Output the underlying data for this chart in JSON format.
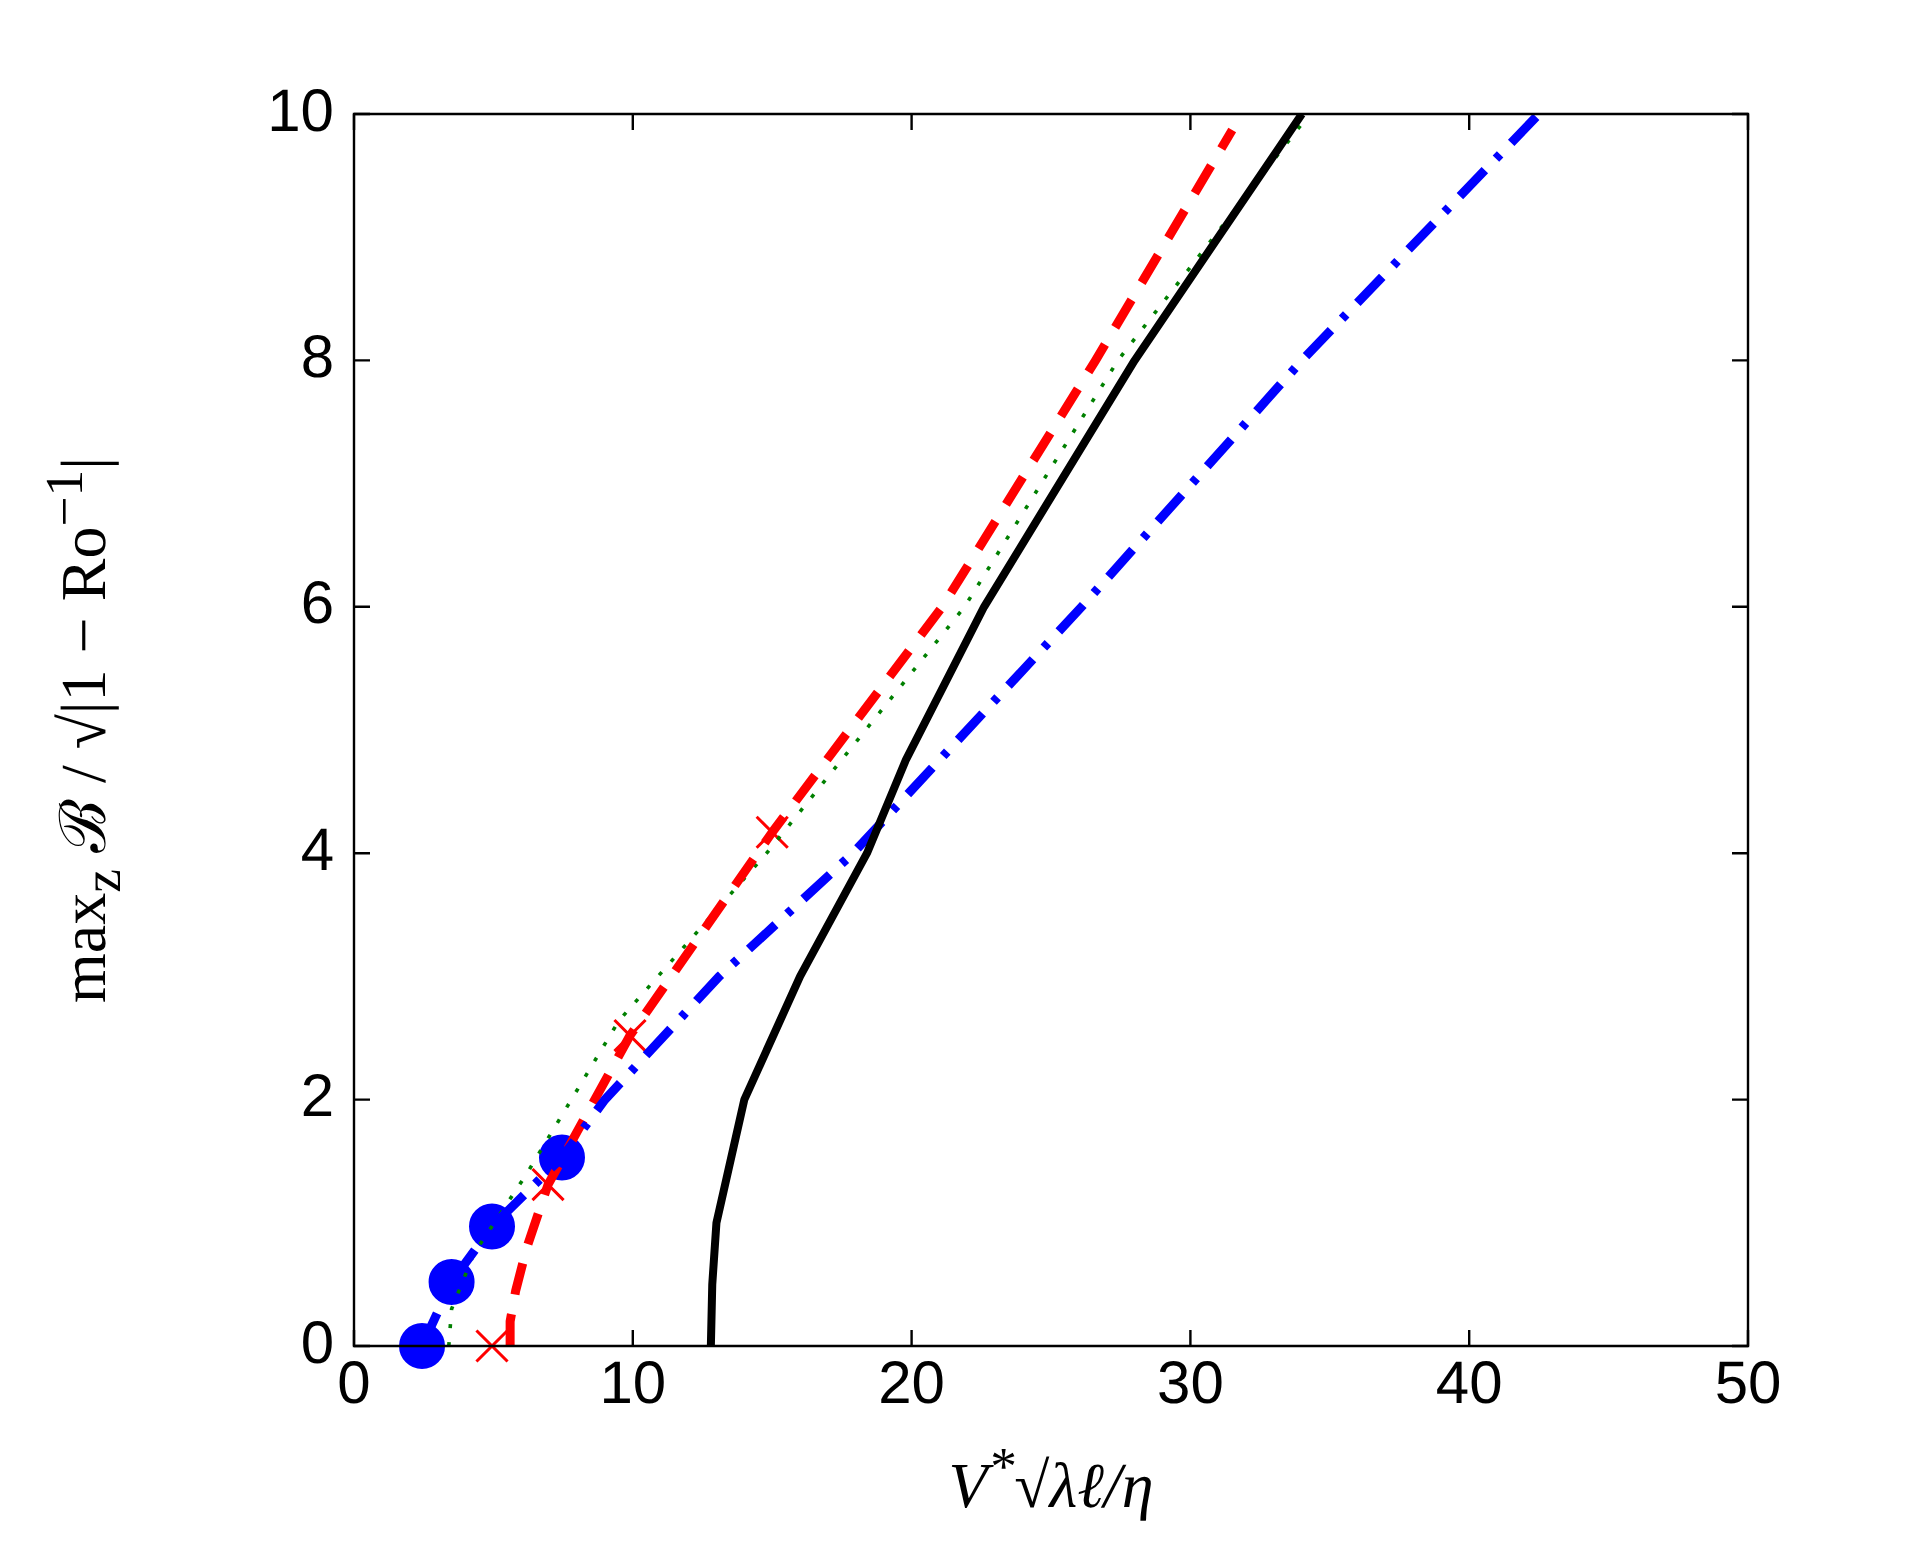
{
  "chart_data": {
    "type": "line",
    "xlabel": "V$^{*}$√λℓ/η",
    "ylabel": "max$_{z}$ ℬ / √|1 − Ro$^{−1}$|",
    "xlim": [
      0,
      50
    ],
    "xticks": [
      0,
      10,
      20,
      30,
      40,
      50
    ],
    "ylim": [
      0,
      10
    ],
    "yticks": [
      0,
      2,
      4,
      6,
      8,
      10
    ],
    "grid": false,
    "legend": false,
    "series": [
      {
        "color": "#000000",
        "line_style": "solid",
        "marker": "none",
        "x": [
          12.8,
          12.85,
          13.0,
          14.0,
          16.0,
          18.4,
          19.8,
          22.6,
          28.0,
          34.0
        ],
        "values": [
          0,
          0.5,
          1,
          2,
          3,
          4,
          4.76,
          6,
          8,
          10
        ]
      },
      {
        "color": "#0000ff",
        "line_style": "dashdot",
        "marker": "none",
        "x": [
          2.44,
          3.5,
          4.95,
          7.46,
          9.0,
          13.1,
          17.9,
          26.1,
          34.0,
          42.5
        ],
        "values": [
          0,
          0.52,
          0.97,
          1.53,
          2,
          3,
          4,
          6,
          8,
          10
        ]
      },
      {
        "color": "#ff0000",
        "line_style": "dashed",
        "marker": "none",
        "x": [
          5.6,
          5.6,
          5.8,
          6.2,
          6.96,
          9.9,
          15.0,
          21.1,
          26.6,
          31.5
        ],
        "values": [
          0,
          0.2,
          0.45,
          0.8,
          1.31,
          2.52,
          4.17,
          6,
          8,
          9.87
        ]
      },
      {
        "color": "#008000",
        "line_style": "dotted",
        "marker": "none",
        "x": [
          3.4,
          3.5,
          4.3,
          6.2,
          9.5,
          14.8,
          21.9,
          27.4,
          34.1
        ],
        "values": [
          0,
          0.3,
          0.75,
          1.4,
          2.64,
          4,
          6,
          8,
          9.95
        ]
      },
      {
        "type": "scatter",
        "color": "#0000ff",
        "marker": "circle",
        "x": [
          2.44,
          3.5,
          4.95,
          7.46
        ],
        "values": [
          0,
          0.52,
          0.97,
          1.53
        ]
      },
      {
        "type": "scatter",
        "color": "#ff0000",
        "marker": "cross",
        "x": [
          4.95,
          6.96,
          9.9,
          15.0
        ],
        "values": [
          0,
          1.31,
          2.52,
          4.17
        ]
      }
    ]
  }
}
